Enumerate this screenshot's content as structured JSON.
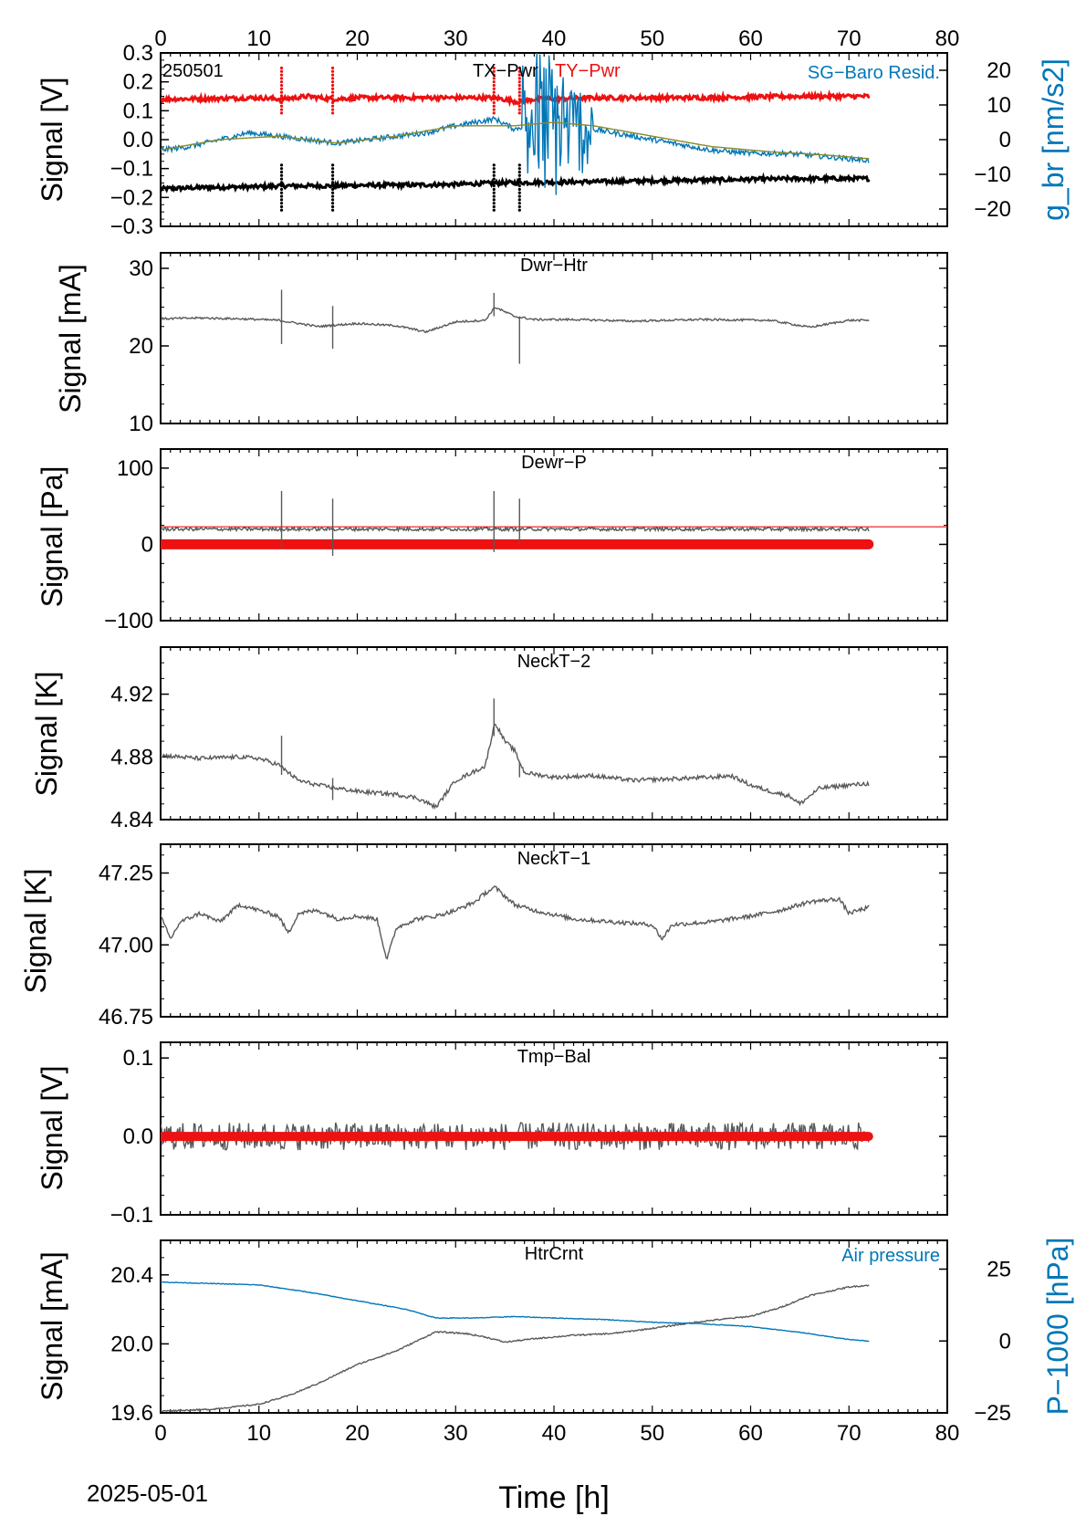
{
  "figure": {
    "date_label": "2025-05-01",
    "xlabel": "Time [h]",
    "xlim": [
      0,
      80
    ],
    "x_ticks": [
      "0",
      "10",
      "20",
      "30",
      "40",
      "50",
      "60",
      "70",
      "80"
    ],
    "colors": {
      "gray": "#595959",
      "red": "#ee1111",
      "blue": "#0077b8",
      "black": "#000000",
      "olive": "#8a8a2a"
    }
  },
  "chart_data": [
    {
      "type": "line",
      "panel_label": "250501",
      "title_parts": [
        "TX−Pwr",
        "TY−Pwr"
      ],
      "right_annotation": "SG−Baro Resid.",
      "ylabel": "Signal [V]",
      "ylim": [
        -0.3,
        0.3
      ],
      "y_ticks": [
        "−0.3",
        "−0.2",
        "−0.1",
        "0.0",
        "0.1",
        "0.2",
        "0.3"
      ],
      "y2label": "g_br [nm/s2]",
      "y2lim": [
        -25,
        25
      ],
      "y2_ticks": [
        "−20",
        "−10",
        "0",
        "10",
        "20"
      ],
      "series": [
        {
          "name": "TX−Pwr",
          "color": "#000000",
          "x": [
            0,
            5,
            10,
            12.3,
            15,
            17.5,
            20,
            25,
            30,
            34,
            38,
            45,
            55,
            65,
            72
          ],
          "y": [
            -0.17,
            -0.165,
            -0.163,
            -0.16,
            -0.16,
            -0.16,
            -0.158,
            -0.157,
            -0.155,
            -0.15,
            -0.148,
            -0.145,
            -0.14,
            -0.135,
            -0.135
          ]
        },
        {
          "name": "TY−Pwr",
          "color": "#ee1111",
          "x": [
            0,
            5,
            10,
            12.3,
            15,
            17.5,
            20,
            25,
            30,
            34,
            36.5,
            38,
            45,
            55,
            65,
            72
          ],
          "y": [
            0.14,
            0.142,
            0.145,
            0.14,
            0.15,
            0.14,
            0.145,
            0.145,
            0.145,
            0.145,
            0.13,
            0.14,
            0.145,
            0.145,
            0.15,
            0.15
          ]
        },
        {
          "name": "SG−Baro Resid.",
          "color": "#0077b8",
          "axis": "right",
          "x": [
            0,
            3,
            6,
            9,
            12,
            15,
            18,
            21,
            24,
            27,
            30,
            34,
            36,
            38,
            41,
            44,
            48,
            52,
            56,
            60,
            64,
            68,
            72
          ],
          "y": [
            -3,
            -2,
            0,
            2,
            1,
            0,
            -1,
            0,
            1,
            2,
            4,
            6,
            3,
            5,
            4,
            3,
            1,
            -1,
            -3,
            -4,
            -4,
            -5,
            -6
          ]
        },
        {
          "name": "SG−Baro Resid. (smoothed)",
          "color": "#8a8a2a",
          "axis": "right",
          "x": [
            0,
            6,
            12,
            18,
            24,
            30,
            36,
            40,
            44,
            50,
            56,
            62,
            68,
            72
          ],
          "y": [
            -3,
            0,
            1,
            -1,
            1,
            4,
            4,
            5,
            4,
            1,
            -2,
            -3.5,
            -4.5,
            -5.5
          ]
        }
      ]
    },
    {
      "type": "line",
      "title": "Dwr−Htr",
      "ylabel": "Signal [mA]",
      "ylim": [
        10,
        32
      ],
      "y_ticks": [
        "10",
        "20",
        "30"
      ],
      "series": [
        {
          "color": "#595959",
          "x": [
            0,
            4,
            8,
            12,
            16,
            20,
            24,
            27,
            30,
            33,
            34,
            36,
            38,
            42,
            48,
            55,
            62,
            66,
            70,
            72
          ],
          "y": [
            23.5,
            23.6,
            23.5,
            23.3,
            22.5,
            22.9,
            22.6,
            21.8,
            23.1,
            23.3,
            25.0,
            23.8,
            23.4,
            23.4,
            23.2,
            23.4,
            23.3,
            22.4,
            23.3,
            23.3
          ]
        }
      ]
    },
    {
      "type": "line",
      "title": "Dewr−P",
      "ylabel": "Signal [Pa]",
      "ylim": [
        -100,
        125
      ],
      "y_ticks": [
        "−100",
        "0",
        "100"
      ],
      "series": [
        {
          "color": "#595959",
          "x": [
            0,
            72
          ],
          "y": [
            20,
            20
          ]
        },
        {
          "color": "#ee1111",
          "x": [
            0,
            72
          ],
          "y": [
            0,
            0
          ]
        },
        {
          "color": "#ee1111",
          "x": [
            0,
            80
          ],
          "y": [
            23,
            23
          ]
        }
      ]
    },
    {
      "type": "line",
      "title": "NeckT−2",
      "ylabel": "Signal [K]",
      "ylim": [
        4.84,
        4.95
      ],
      "y_ticks": [
        "4.84",
        "4.88",
        "4.92"
      ],
      "series": [
        {
          "color": "#595959",
          "x": [
            0,
            4,
            8,
            10,
            12,
            14,
            16,
            18,
            20,
            22,
            24,
            26,
            28,
            30,
            32,
            33,
            34,
            35,
            36,
            37,
            40,
            44,
            48,
            52,
            56,
            58,
            60,
            62,
            64,
            65,
            67,
            70,
            72
          ],
          "y": [
            4.881,
            4.879,
            4.88,
            4.879,
            4.875,
            4.865,
            4.862,
            4.86,
            4.858,
            4.857,
            4.856,
            4.854,
            4.848,
            4.865,
            4.871,
            4.874,
            4.902,
            4.89,
            4.884,
            4.87,
            4.867,
            4.868,
            4.865,
            4.866,
            4.867,
            4.868,
            4.862,
            4.858,
            4.855,
            4.85,
            4.86,
            4.862,
            4.863
          ]
        }
      ]
    },
    {
      "type": "line",
      "title": "NeckT−1",
      "ylabel": "Signal [K]",
      "ylim": [
        46.75,
        47.35
      ],
      "y_ticks": [
        "46.75",
        "47.00",
        "47.25"
      ],
      "series": [
        {
          "color": "#595959",
          "x": [
            0,
            1,
            2,
            4,
            6,
            8,
            10,
            12,
            13,
            14,
            16,
            18,
            20,
            22,
            23,
            24,
            26,
            28,
            30,
            32,
            33,
            34,
            36,
            38,
            42,
            46,
            50,
            51,
            52,
            56,
            60,
            63,
            66,
            69,
            70,
            72
          ],
          "y": [
            47.1,
            47.02,
            47.08,
            47.11,
            47.08,
            47.14,
            47.12,
            47.1,
            47.04,
            47.11,
            47.12,
            47.09,
            47.1,
            47.09,
            46.95,
            47.06,
            47.09,
            47.1,
            47.12,
            47.15,
            47.18,
            47.2,
            47.14,
            47.12,
            47.09,
            47.08,
            47.07,
            47.02,
            47.07,
            47.08,
            47.1,
            47.12,
            47.15,
            47.16,
            47.11,
            47.13
          ]
        }
      ]
    },
    {
      "type": "line",
      "title": "Tmp−Bal",
      "ylabel": "Signal [V]",
      "ylim": [
        -0.1,
        0.12
      ],
      "y_ticks": [
        "−0.1",
        "0.0",
        "0.1"
      ],
      "series": [
        {
          "color": "#595959",
          "x": [
            0,
            72
          ],
          "y": [
            0.0,
            0.0
          ]
        },
        {
          "color": "#ee1111",
          "x": [
            0,
            72
          ],
          "y": [
            0.0,
            0.0
          ]
        }
      ]
    },
    {
      "type": "line",
      "title": "HtrCrnt",
      "right_annotation": "Air pressure",
      "ylabel": "Signal [mA]",
      "ylim": [
        19.6,
        20.6
      ],
      "y_ticks": [
        "19.6",
        "20.0",
        "20.4"
      ],
      "y2label": "P−1000 [hPa]",
      "y2lim": [
        -25,
        35
      ],
      "y2_ticks": [
        "−25",
        "0",
        "25"
      ],
      "series": [
        {
          "color": "#595959",
          "x": [
            0,
            5,
            10,
            13,
            16,
            20,
            24,
            28,
            31,
            33,
            35,
            38,
            42,
            46,
            50,
            55,
            60,
            63,
            66,
            70,
            72
          ],
          "y": [
            19.61,
            19.62,
            19.65,
            19.7,
            19.77,
            19.88,
            19.96,
            20.07,
            20.06,
            20.04,
            20.01,
            20.03,
            20.05,
            20.06,
            20.09,
            20.13,
            20.16,
            20.21,
            20.28,
            20.33,
            20.34
          ]
        },
        {
          "color": "#0077b8",
          "axis": "right",
          "x": [
            0,
            5,
            10,
            15,
            20,
            25,
            28,
            32,
            36,
            40,
            45,
            50,
            55,
            60,
            65,
            70,
            72
          ],
          "y": [
            20.5,
            20,
            19.5,
            17,
            14,
            11,
            8.0,
            8.0,
            8.5,
            8.0,
            7.5,
            6.5,
            6.0,
            5.0,
            3.0,
            0.5,
            0.0
          ]
        }
      ]
    }
  ]
}
